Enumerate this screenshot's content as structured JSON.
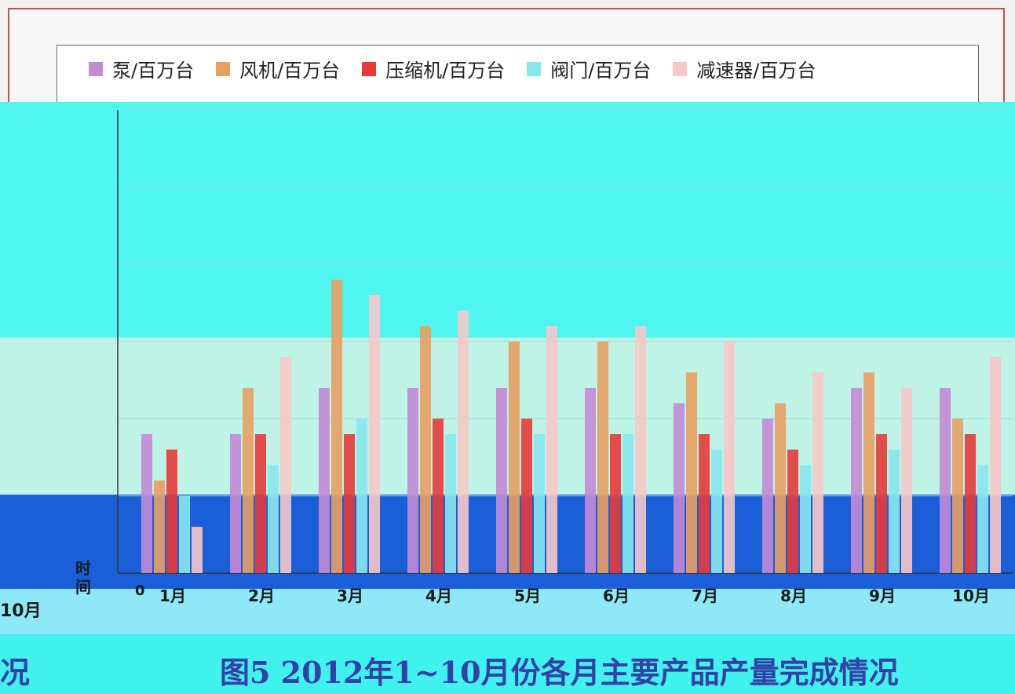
{
  "legend": {
    "items": [
      {
        "label": "泵/百万台",
        "color": "#c38ad6"
      },
      {
        "label": "风机/百万台",
        "color": "#e8a060"
      },
      {
        "label": "压缩机/百万台",
        "color": "#e83a3a"
      },
      {
        "label": "阀门/百万台",
        "color": "#88e8f0"
      },
      {
        "label": "减速器/百万台",
        "color": "#f6c8c8"
      }
    ]
  },
  "caption": {
    "text": "图5 2012年1~10月份各月主要产品产量完成情况",
    "left_fragment": "况"
  },
  "axis": {
    "x_title": "时间",
    "zero_label": "0",
    "left_partial_label": "10月"
  },
  "chart_data": {
    "type": "bar",
    "categories": [
      "1月",
      "2月",
      "3月",
      "4月",
      "5月",
      "6月",
      "7月",
      "8月",
      "9月",
      "10月"
    ],
    "series": [
      {
        "name": "泵/百万台",
        "values": [
          0.9,
          0.9,
          1.2,
          1.2,
          1.2,
          1.2,
          1.1,
          1.0,
          1.2,
          1.2
        ]
      },
      {
        "name": "风机/百万台",
        "values": [
          0.6,
          1.2,
          1.9,
          1.6,
          1.5,
          1.5,
          1.3,
          1.1,
          1.3,
          1.0
        ]
      },
      {
        "name": "压缩机/百万台",
        "values": [
          0.8,
          0.9,
          0.9,
          1.0,
          1.0,
          0.9,
          0.9,
          0.8,
          0.9,
          0.9
        ]
      },
      {
        "name": "阀门/百万台",
        "values": [
          0.5,
          0.7,
          1.0,
          0.9,
          0.9,
          0.9,
          0.8,
          0.7,
          0.8,
          0.7
        ]
      },
      {
        "name": "减速器/百万台",
        "values": [
          0.3,
          1.4,
          1.8,
          1.7,
          1.6,
          1.6,
          1.5,
          1.3,
          1.2,
          1.4
        ]
      }
    ],
    "title": "图5 2012年1~10月份各月主要产品产量完成情况",
    "xlabel": "时间",
    "ylabel": "",
    "ylim": [
      0,
      3
    ]
  }
}
